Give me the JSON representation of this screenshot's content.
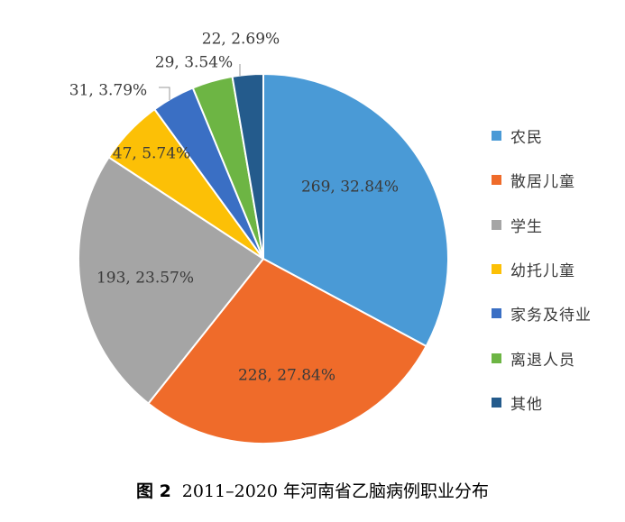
{
  "chart_data": {
    "type": "pie",
    "title": "",
    "legend_position": "right",
    "slices": [
      {
        "name": "农民",
        "value": 269,
        "percent": "32.84%",
        "label": "269, 32.84%",
        "color": "#4a9ad6"
      },
      {
        "name": "散居儿童",
        "value": 228,
        "percent": "27.84%",
        "label": "228, 27.84%",
        "color": "#ef6b2a"
      },
      {
        "name": "学生",
        "value": 193,
        "percent": "23.57%",
        "label": "193, 23.57%",
        "color": "#a5a5a5"
      },
      {
        "name": "幼托儿童",
        "value": 47,
        "percent": "5.74%",
        "label": "47, 5.74%",
        "color": "#fcc006"
      },
      {
        "name": "家务及待业",
        "value": 31,
        "percent": "3.79%",
        "label": "31, 3.79%",
        "color": "#3a6fc4"
      },
      {
        "name": "离退人员",
        "value": 29,
        "percent": "3.54%",
        "label": "29, 3.54%",
        "color": "#6db544"
      },
      {
        "name": "其他",
        "value": 22,
        "percent": "2.69%",
        "label": "22, 2.69%",
        "color": "#245b8c"
      }
    ]
  },
  "caption": {
    "figure_number": "图 2",
    "text": "2011–2020 年河南省乙脑病例职业分布"
  }
}
